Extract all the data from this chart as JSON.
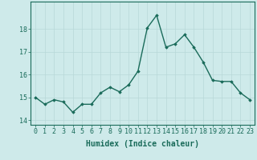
{
  "x": [
    0,
    1,
    2,
    3,
    4,
    5,
    6,
    7,
    8,
    9,
    10,
    11,
    12,
    13,
    14,
    15,
    16,
    17,
    18,
    19,
    20,
    21,
    22,
    23
  ],
  "y": [
    15.0,
    14.7,
    14.9,
    14.8,
    14.35,
    14.7,
    14.7,
    15.2,
    15.45,
    15.25,
    15.55,
    16.15,
    18.05,
    18.6,
    17.2,
    17.35,
    17.75,
    17.2,
    16.55,
    15.75,
    15.7,
    15.7,
    15.2,
    14.9
  ],
  "xlabel": "Humidex (Indice chaleur)",
  "ylim": [
    13.8,
    19.2
  ],
  "xlim": [
    -0.5,
    23.5
  ],
  "yticks": [
    14,
    15,
    16,
    17,
    18
  ],
  "xticks": [
    0,
    1,
    2,
    3,
    4,
    5,
    6,
    7,
    8,
    9,
    10,
    11,
    12,
    13,
    14,
    15,
    16,
    17,
    18,
    19,
    20,
    21,
    22,
    23
  ],
  "line_color": "#1a6b5a",
  "marker": "D",
  "marker_size": 1.8,
  "bg_color": "#ceeaea",
  "grid_color": "#b8d8d8",
  "xlabel_fontsize": 7,
  "tick_fontsize": 6,
  "line_width": 1.0
}
